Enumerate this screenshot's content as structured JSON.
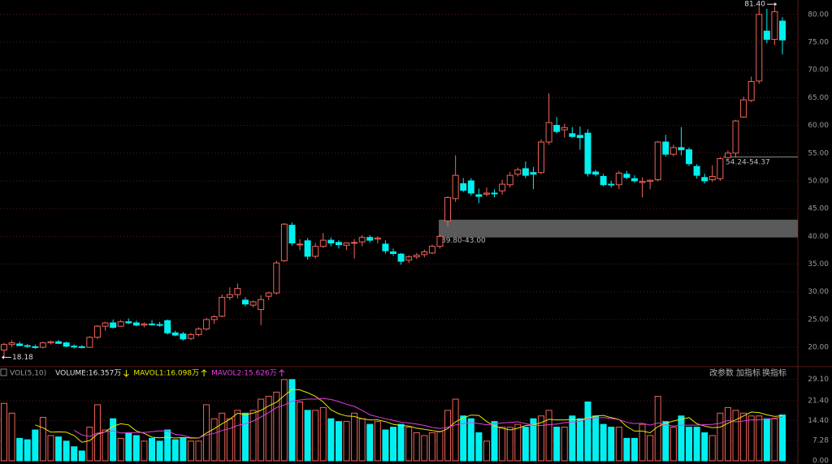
{
  "chart_data": [
    {
      "type": "candlestick",
      "up_color": "#f0645a",
      "down_color": "#00f0f0",
      "grid": true,
      "ylim": [
        16.8,
        82.6
      ],
      "yticks": [
        {
          "value": 20,
          "label": "20.00"
        },
        {
          "value": 25,
          "label": "25.00"
        },
        {
          "value": 30,
          "label": "30.00"
        },
        {
          "value": 35,
          "label": "35.00"
        },
        {
          "value": 40,
          "label": "40.00"
        },
        {
          "value": 45,
          "label": "45.00"
        },
        {
          "value": 50,
          "label": "50.00"
        },
        {
          "value": 55,
          "label": "55.00"
        },
        {
          "value": 60,
          "label": "60.00"
        },
        {
          "value": 65,
          "label": "65.00"
        },
        {
          "value": 70,
          "label": "70.00"
        },
        {
          "value": 75,
          "label": "75.00"
        },
        {
          "value": 80,
          "label": "80.00"
        }
      ],
      "annotations": [
        {
          "value": 81.4,
          "label": "81.40"
        },
        {
          "value": 18.18,
          "label": "18.18"
        }
      ],
      "zones": [
        {
          "low": 39.8,
          "high": 43.0,
          "label": "39.80-43.00"
        },
        {
          "low": 54.24,
          "high": 54.37,
          "label": "54.24-54.37"
        }
      ],
      "ohlc": [
        [
          19.5,
          20.8,
          18.18,
          20.5
        ],
        [
          20.5,
          21.3,
          20,
          20.8
        ],
        [
          20.6,
          21,
          20.2,
          20.3
        ],
        [
          20.3,
          20.6,
          19.9,
          20.2
        ],
        [
          20.1,
          20.5,
          19.7,
          20.0
        ],
        [
          20,
          21,
          19.8,
          20.8
        ],
        [
          20.8,
          21.2,
          20.5,
          21.0
        ],
        [
          21,
          21.3,
          20.6,
          20.7
        ],
        [
          20.8,
          21,
          20,
          20.2
        ],
        [
          20.2,
          20.5,
          19.8,
          20.1
        ],
        [
          20.1,
          20.4,
          19.8,
          20.0
        ],
        [
          20,
          22,
          19.9,
          21.8
        ],
        [
          21.8,
          24,
          21.5,
          23.8
        ],
        [
          23.8,
          24.6,
          23,
          24.4
        ],
        [
          24.4,
          25,
          23.4,
          23.6
        ],
        [
          23.8,
          24.9,
          23.7,
          24.6
        ],
        [
          24.6,
          25.2,
          24.2,
          24.4
        ],
        [
          24.4,
          24.8,
          23.8,
          24.0
        ],
        [
          24,
          24.5,
          23.6,
          24.2
        ],
        [
          24.2,
          24.9,
          23.9,
          24.1
        ],
        [
          24.1,
          24.6,
          23.7,
          24.0
        ],
        [
          24.8,
          25,
          22.3,
          22.6
        ],
        [
          22.6,
          23,
          22,
          22.2
        ],
        [
          22.4,
          22.8,
          21.2,
          21.5
        ],
        [
          21.6,
          22.6,
          21.3,
          22.3
        ],
        [
          22.3,
          23.6,
          22,
          23.3
        ],
        [
          23.3,
          25.3,
          23,
          25.0
        ],
        [
          25,
          25.8,
          24.2,
          25.5
        ],
        [
          25.6,
          29.5,
          25.4,
          29.0
        ],
        [
          29,
          30.8,
          28.5,
          29.5
        ],
        [
          29.5,
          31.5,
          28.8,
          30.6
        ],
        [
          28.5,
          29,
          27.4,
          27.8
        ],
        [
          27.6,
          28.4,
          27.2,
          28.2
        ],
        [
          26.8,
          29.4,
          24,
          28.6
        ],
        [
          29.2,
          30,
          28.5,
          29.8
        ],
        [
          29.8,
          35.6,
          29.5,
          35.2
        ],
        [
          35.6,
          42.4,
          35.4,
          42.2
        ],
        [
          42,
          42.5,
          38.3,
          38.8
        ],
        [
          38.6,
          39.5,
          37.5,
          38.6
        ],
        [
          39.2,
          39.7,
          35.8,
          36.4
        ],
        [
          36.4,
          38.8,
          36,
          38.2
        ],
        [
          38.2,
          40.6,
          37.9,
          39.3
        ],
        [
          39.3,
          39.8,
          38.2,
          38.8
        ],
        [
          38.9,
          39.3,
          37.8,
          38.5
        ],
        [
          38.4,
          38.9,
          37.5,
          38.8
        ],
        [
          38.9,
          39.5,
          36,
          38.9
        ],
        [
          39,
          40.2,
          38.2,
          39.8
        ],
        [
          39.8,
          40.2,
          38.9,
          39.3
        ],
        [
          39.5,
          40,
          38.7,
          39.7
        ],
        [
          38.6,
          39.3,
          36.9,
          37.4
        ],
        [
          37.2,
          37.8,
          36.5,
          36.9
        ],
        [
          36.8,
          37,
          34.9,
          35.5
        ],
        [
          35.7,
          36.6,
          35.2,
          36.3
        ],
        [
          36.3,
          37,
          35.9,
          36.6
        ],
        [
          36.7,
          37.6,
          36.2,
          37.2
        ],
        [
          37,
          38.5,
          36.8,
          38.2
        ],
        [
          38.2,
          40.3,
          37.8,
          40.0
        ],
        [
          42.8,
          47.2,
          41.8,
          47.0
        ],
        [
          46.8,
          54.6,
          46.2,
          51
        ],
        [
          49.5,
          50.5,
          48,
          48.3
        ],
        [
          50,
          50.5,
          47.3,
          47.8
        ],
        [
          47.5,
          48.6,
          46,
          47.2
        ],
        [
          47.6,
          48.8,
          47.2,
          47.8
        ],
        [
          47.8,
          48.5,
          47,
          47.7
        ],
        [
          48.2,
          50.2,
          47.5,
          49.4
        ],
        [
          49.3,
          51.6,
          48.8,
          51.0
        ],
        [
          51.2,
          52.4,
          50.8,
          52.0
        ],
        [
          52.2,
          53.5,
          50.5,
          51
        ],
        [
          51.5,
          52.5,
          48.5,
          51.2
        ],
        [
          51.5,
          57.5,
          51.2,
          57.0
        ],
        [
          57,
          65.8,
          56.5,
          60.5
        ],
        [
          60,
          61.5,
          58.6,
          58.9
        ],
        [
          59.2,
          60.3,
          57.8,
          59.6
        ],
        [
          58.5,
          59.7,
          57.8,
          58.0
        ],
        [
          58.2,
          59.8,
          55.6,
          57.8
        ],
        [
          58.6,
          59.3,
          50.8,
          51.3
        ],
        [
          51.6,
          52,
          50.8,
          51.2
        ],
        [
          50.8,
          51.3,
          49,
          49.3
        ],
        [
          49.4,
          50,
          48.8,
          49.3
        ],
        [
          49.3,
          51.8,
          48.5,
          51.4
        ],
        [
          51.2,
          51.8,
          50.3,
          50.6
        ],
        [
          50.4,
          51,
          49.7,
          50.0
        ],
        [
          49.7,
          50.6,
          47,
          49.9
        ],
        [
          49.9,
          50.3,
          48.5,
          50.1
        ],
        [
          50.2,
          57.2,
          49.9,
          57.0
        ],
        [
          57,
          58.3,
          54.4,
          54.8
        ],
        [
          54.8,
          56.5,
          54.4,
          56
        ],
        [
          56,
          59.7,
          54.6,
          55.6
        ],
        [
          55.6,
          56,
          52.7,
          53.1
        ],
        [
          52.6,
          53,
          50.4,
          51
        ],
        [
          50.6,
          51.3,
          49.5,
          50
        ],
        [
          50.2,
          52.8,
          49.8,
          50.8
        ],
        [
          50.4,
          54.3,
          50,
          54.0
        ],
        [
          54.2,
          55.5,
          54,
          55.0
        ],
        [
          55,
          61,
          54.2,
          60.8
        ],
        [
          61.5,
          65.2,
          61.4,
          64.6
        ],
        [
          64.5,
          68.8,
          64.2,
          67.9
        ],
        [
          68,
          81.4,
          67.5,
          80
        ],
        [
          77,
          81,
          74.8,
          75.5
        ],
        [
          75.5,
          81.4,
          74.5,
          80.5
        ],
        [
          78.8,
          79.5,
          72.8,
          75.4
        ]
      ]
    },
    {
      "type": "bar",
      "title": "VOL(5,10)",
      "volume_label": "VOLUME:16.357万",
      "buttons": [
        "改参数",
        "加指标",
        "换指标"
      ],
      "grid": true,
      "ylim": [
        0,
        30.7
      ],
      "yticks": [
        {
          "value": 0,
          "label": "0.00"
        },
        {
          "value": 7.28,
          "label": "7.28"
        },
        {
          "value": 14.4,
          "label": "14.40"
        },
        {
          "value": 21.4,
          "label": "21.40"
        },
        {
          "value": 29.1,
          "label": "29.10"
        }
      ],
      "values": [
        20.5,
        17,
        8,
        7.5,
        11,
        15.5,
        9,
        8.5,
        7,
        5,
        3.5,
        12,
        20,
        11,
        15,
        8,
        10,
        9,
        7,
        8,
        7,
        11,
        7.5,
        8,
        7,
        7,
        20,
        15,
        17,
        15,
        18,
        17,
        18,
        22,
        23,
        24.5,
        29,
        29,
        21,
        18,
        18,
        19,
        15,
        14,
        14,
        17,
        15,
        13,
        14,
        11,
        12,
        13,
        12,
        10,
        9,
        10,
        10.5,
        18,
        22,
        16,
        15,
        10,
        7,
        14,
        12,
        12,
        13,
        12,
        15,
        16,
        18,
        12,
        12,
        16,
        15,
        21,
        16,
        13,
        12,
        12,
        8,
        8,
        13,
        9,
        23,
        14,
        12,
        16,
        12,
        12,
        10,
        9,
        17,
        19,
        18,
        17,
        16,
        16,
        15,
        15,
        16.357
      ],
      "series": [
        {
          "name": "MAVOL1:16.098万",
          "color": "#e8e800",
          "values": [
            null,
            null,
            null,
            null,
            12.8,
            11.8,
            10.2,
            10.3,
            10.2,
            9,
            6.6,
            7.2,
            9.5,
            10.3,
            12.3,
            13.2,
            12.8,
            10.6,
            9.8,
            8.4,
            8.2,
            8.4,
            8.1,
            8.3,
            8.1,
            8.1,
            9.9,
            11.4,
            13.2,
            14.8,
            17,
            16.4,
            17,
            18,
            19.6,
            20.9,
            23.3,
            25.5,
            25.3,
            24.3,
            23,
            21,
            18.2,
            16.8,
            16,
            15.8,
            15,
            14.6,
            14.6,
            14,
            13,
            12.6,
            12.4,
            11.6,
            11.2,
            10.8,
            10.3,
            11.5,
            13.9,
            15.3,
            16.3,
            16.2,
            14,
            12.4,
            11.6,
            11,
            11.6,
            12.6,
            12.8,
            13.6,
            14.8,
            14.6,
            14.6,
            14.8,
            14.6,
            15.2,
            16,
            16.2,
            15.4,
            14.8,
            12.2,
            10.6,
            10.6,
            10,
            12.2,
            13.4,
            14.2,
            14.8,
            15.4,
            13.2,
            12.4,
            11.8,
            12,
            13.4,
            14.6,
            16,
            17.4,
            17.2,
            16.4,
            15.8,
            16.098
          ]
        },
        {
          "name": "MAVOL2:15.626万",
          "color": "#e040e0",
          "values": [
            null,
            null,
            null,
            null,
            null,
            null,
            null,
            null,
            null,
            10.9,
            9.2,
            8.7,
            9.9,
            10.3,
            10.7,
            9.9,
            10,
            10.1,
            10.1,
            10.4,
            10.7,
            10.6,
            9.4,
            9.1,
            8.3,
            8.2,
            9.2,
            9.8,
            10.8,
            11.5,
            12.6,
            13.2,
            14.2,
            15.6,
            17.2,
            19,
            19.9,
            21.3,
            21.7,
            22,
            22,
            22.2,
            21.9,
            21.1,
            20.2,
            19.4,
            18,
            16.4,
            15.7,
            15,
            14.4,
            13.8,
            13.5,
            13.1,
            12.6,
            11.9,
            11.5,
            12,
            12.8,
            13.3,
            13.6,
            13.3,
            12.8,
            13.2,
            13.5,
            13.7,
            13.9,
            13.3,
            12.6,
            12.6,
            12.9,
            13.1,
            13.6,
            13.8,
            14.1,
            15,
            15.3,
            15.4,
            15.1,
            14.7,
            13.7,
            13.3,
            13.4,
            12.7,
            13.5,
            12.8,
            12.4,
            12.7,
            12.7,
            12.7,
            12.9,
            13,
            13.4,
            14.4,
            13.9,
            14.2,
            14.6,
            14.6,
            14.9,
            15.2,
            15.626
          ]
        }
      ]
    }
  ]
}
